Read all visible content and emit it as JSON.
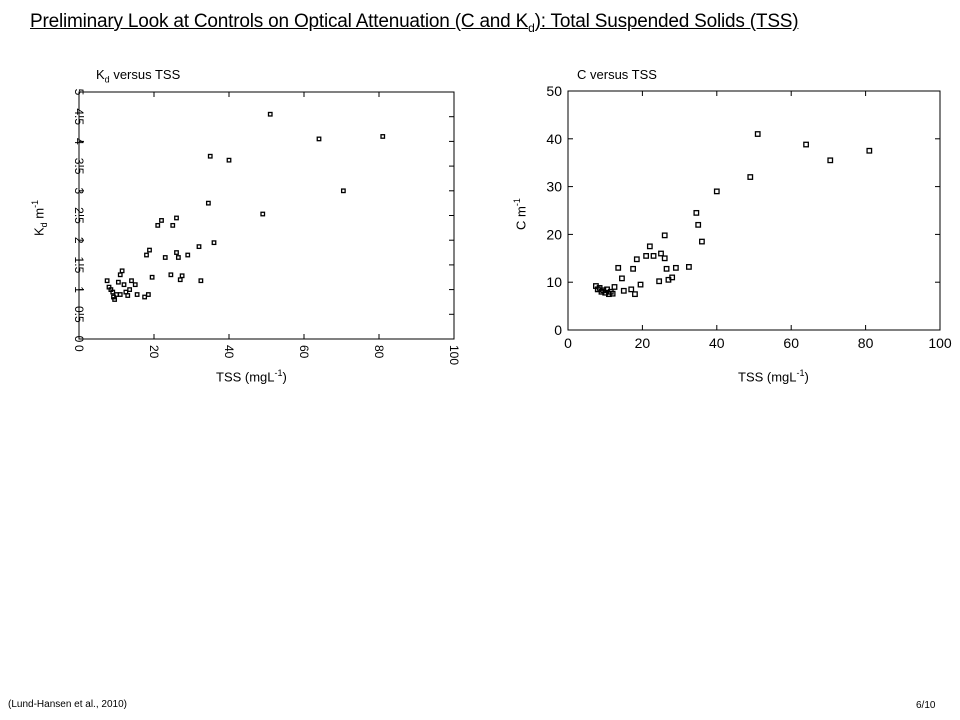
{
  "slide": {
    "title_main": "Preliminary Look at Controls on Optical Attenuation (C and K",
    "title_sub": "d",
    "title_tail": "): Total Suspended Solids (TSS)",
    "citation": "(Lund-Hansen et al., 2010)",
    "page_number": "6/10"
  },
  "chart_data": [
    {
      "type": "scatter",
      "title_prefix": "K",
      "title_sub": "d",
      "title_suffix": "versus TSS",
      "ylabel_main": "K",
      "ylabel_sub": "d",
      "ylabel_unit": " m",
      "ylabel_exp": "-1",
      "xlabel_main": "TSS (mgL",
      "xlabel_exp": "-1",
      "xlabel_close": ")",
      "xlim": [
        0,
        100
      ],
      "ylim": [
        0,
        5
      ],
      "xticks": [
        "0",
        "20",
        "40",
        "60",
        "80",
        "100"
      ],
      "yticks": [
        "0",
        "0.5",
        "1",
        "1.5",
        "2",
        "2.5",
        "3",
        "3.5",
        "4",
        "4.5",
        "5"
      ],
      "points": [
        [
          7.5,
          1.18
        ],
        [
          8.0,
          1.05
        ],
        [
          8.5,
          1.0
        ],
        [
          9.0,
          0.95
        ],
        [
          9.2,
          0.85
        ],
        [
          9.5,
          0.8
        ],
        [
          10.0,
          0.9
        ],
        [
          10.5,
          1.15
        ],
        [
          11.0,
          0.9
        ],
        [
          11.0,
          1.3
        ],
        [
          11.5,
          1.38
        ],
        [
          12.0,
          1.1
        ],
        [
          12.5,
          0.95
        ],
        [
          13.0,
          0.88
        ],
        [
          13.5,
          1.0
        ],
        [
          14.0,
          1.18
        ],
        [
          15.0,
          1.1
        ],
        [
          15.5,
          0.9
        ],
        [
          17.5,
          0.85
        ],
        [
          18.0,
          1.7
        ],
        [
          18.5,
          0.9
        ],
        [
          18.8,
          1.8
        ],
        [
          19.5,
          1.25
        ],
        [
          21.0,
          2.3
        ],
        [
          22.0,
          2.4
        ],
        [
          23.0,
          1.65
        ],
        [
          24.5,
          1.3
        ],
        [
          25.0,
          2.3
        ],
        [
          26.0,
          2.45
        ],
        [
          26.0,
          1.75
        ],
        [
          26.5,
          1.65
        ],
        [
          27.0,
          1.2
        ],
        [
          27.5,
          1.28
        ],
        [
          29.0,
          1.7
        ],
        [
          32.0,
          1.87
        ],
        [
          32.5,
          1.18
        ],
        [
          34.5,
          2.75
        ],
        [
          35.0,
          3.7
        ],
        [
          36.0,
          1.95
        ],
        [
          40.0,
          3.62
        ],
        [
          49.0,
          2.53
        ],
        [
          51.0,
          4.55
        ],
        [
          64.0,
          4.05
        ],
        [
          70.5,
          3.0
        ],
        [
          81.0,
          4.1
        ]
      ]
    },
    {
      "type": "scatter",
      "title_prefix": "C",
      "title_suffix": "versus TSS",
      "ylabel_main": "C m",
      "ylabel_exp": "-1",
      "xlabel_main": "TSS (mgL",
      "xlabel_exp": "-1",
      "xlabel_close": ")",
      "xlim": [
        0,
        100
      ],
      "ylim": [
        0,
        50
      ],
      "xticks": [
        "0",
        "20",
        "40",
        "60",
        "80",
        "100"
      ],
      "yticks": [
        "0",
        "10",
        "20",
        "30",
        "40",
        "50"
      ],
      "points": [
        [
          7.5,
          9.2
        ],
        [
          8.0,
          8.5
        ],
        [
          8.5,
          8.8
        ],
        [
          9.0,
          8.0
        ],
        [
          9.5,
          8.3
        ],
        [
          10.0,
          7.8
        ],
        [
          10.5,
          8.5
        ],
        [
          11.0,
          7.5
        ],
        [
          11.5,
          8.0
        ],
        [
          12.0,
          7.6
        ],
        [
          12.5,
          9.0
        ],
        [
          13.5,
          13.0
        ],
        [
          14.5,
          10.8
        ],
        [
          15.0,
          8.2
        ],
        [
          17.0,
          8.5
        ],
        [
          17.5,
          12.8
        ],
        [
          18.0,
          7.5
        ],
        [
          18.5,
          14.8
        ],
        [
          19.5,
          9.5
        ],
        [
          21.0,
          15.5
        ],
        [
          22.0,
          17.5
        ],
        [
          23.0,
          15.5
        ],
        [
          24.5,
          10.2
        ],
        [
          25.0,
          16.0
        ],
        [
          26.0,
          15.0
        ],
        [
          26.0,
          19.8
        ],
        [
          26.5,
          12.8
        ],
        [
          27.0,
          10.5
        ],
        [
          28.0,
          11.0
        ],
        [
          29.0,
          13.0
        ],
        [
          32.5,
          13.2
        ],
        [
          34.5,
          24.5
        ],
        [
          35.0,
          22.0
        ],
        [
          36.0,
          18.5
        ],
        [
          40.0,
          29.0
        ],
        [
          49.0,
          32.0
        ],
        [
          51.0,
          41.0
        ],
        [
          64.0,
          38.8
        ],
        [
          70.5,
          35.5
        ],
        [
          81.0,
          37.5
        ]
      ]
    }
  ]
}
